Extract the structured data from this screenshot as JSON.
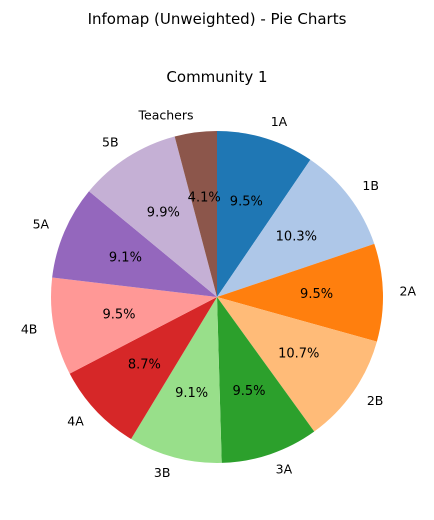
{
  "chart_data": {
    "type": "pie",
    "suptitle": "Infomap (Unweighted) - Pie Charts",
    "title": "Community 1",
    "start_angle_deg": 90,
    "direction": "clockwise",
    "slices": [
      {
        "label": "1A",
        "value": 9.5,
        "pct_label": "9.5%",
        "color": "#1f77b4"
      },
      {
        "label": "1B",
        "value": 10.3,
        "pct_label": "10.3%",
        "color": "#aec7e8"
      },
      {
        "label": "2A",
        "value": 9.5,
        "pct_label": "9.5%",
        "color": "#ff7f0e"
      },
      {
        "label": "2B",
        "value": 10.7,
        "pct_label": "10.7%",
        "color": "#ffbb78"
      },
      {
        "label": "3A",
        "value": 9.5,
        "pct_label": "9.5%",
        "color": "#2ca02c"
      },
      {
        "label": "3B",
        "value": 9.1,
        "pct_label": "9.1%",
        "color": "#98df8a"
      },
      {
        "label": "4A",
        "value": 8.7,
        "pct_label": "8.7%",
        "color": "#d62728"
      },
      {
        "label": "4B",
        "value": 9.5,
        "pct_label": "9.5%",
        "color": "#ff9896"
      },
      {
        "label": "5A",
        "value": 9.1,
        "pct_label": "9.1%",
        "color": "#9467bd"
      },
      {
        "label": "5B",
        "value": 9.9,
        "pct_label": "9.9%",
        "color": "#c5b0d5"
      },
      {
        "label": "Teachers",
        "value": 4.1,
        "pct_label": "4.1%",
        "color": "#8c564b"
      }
    ]
  }
}
